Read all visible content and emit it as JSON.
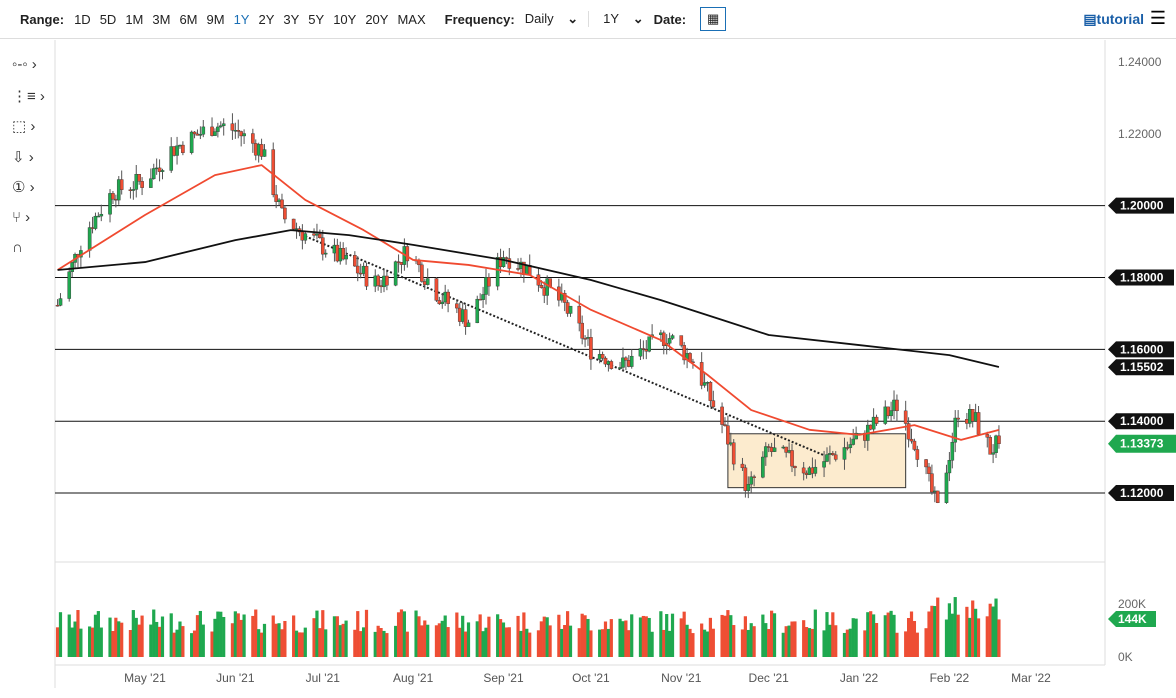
{
  "toolbar": {
    "range_label": "Range:",
    "ranges": [
      "1D",
      "5D",
      "1M",
      "3M",
      "6M",
      "9M",
      "1Y",
      "2Y",
      "3Y",
      "5Y",
      "10Y",
      "20Y",
      "MAX"
    ],
    "active_range": "1Y",
    "frequency_label": "Frequency:",
    "frequency": "Daily",
    "period": "1Y",
    "date_label": "Date:",
    "tutorial": "tutorial"
  },
  "tools": [
    "crosshair-icon",
    "list-icon",
    "rectangle-icon",
    "arrow-down-icon",
    "number-icon",
    "fork-icon",
    "magnet-icon"
  ],
  "chart_data": {
    "type": "candlestick",
    "ylim": [
      1.105,
      1.245
    ],
    "yticks": [
      "1.24000",
      "1.22000",
      "1.20000",
      "1.18000",
      "1.16000",
      "1.14000",
      "1.12000"
    ],
    "xticks": [
      [
        "May '21",
        "2021-05-01"
      ],
      [
        "Jun '21",
        "2021-06-01"
      ],
      [
        "Jul '21",
        "2021-07-01"
      ],
      [
        "Aug '21",
        "2021-08-01"
      ],
      [
        "Sep '21",
        "2021-09-01"
      ],
      [
        "Oct '21",
        "2021-10-01"
      ],
      [
        "Nov '21",
        "2021-11-01"
      ],
      [
        "Dec '21",
        "2021-12-01"
      ],
      [
        "Jan '22",
        "2022-01-01"
      ],
      [
        "Feb '22",
        "2022-02-01"
      ],
      [
        "Mar '22",
        "2022-03-01"
      ]
    ],
    "close_keypoints": [
      [
        "2021-04-01",
        1.1723
      ],
      [
        "2021-04-10",
        1.192
      ],
      [
        "2021-04-20",
        1.204
      ],
      [
        "2021-05-01",
        1.207
      ],
      [
        "2021-05-10",
        1.2155
      ],
      [
        "2021-05-25",
        1.2225
      ],
      [
        "2021-06-01",
        1.221
      ],
      [
        "2021-06-10",
        1.2155
      ],
      [
        "2021-06-17",
        1.197
      ],
      [
        "2021-06-25",
        1.192
      ],
      [
        "2021-07-05",
        1.1865
      ],
      [
        "2021-07-20",
        1.178
      ],
      [
        "2021-07-30",
        1.1875
      ],
      [
        "2021-08-10",
        1.175
      ],
      [
        "2021-08-20",
        1.168
      ],
      [
        "2021-09-01",
        1.1865
      ],
      [
        "2021-09-10",
        1.182
      ],
      [
        "2021-09-22",
        1.172
      ],
      [
        "2021-10-01",
        1.16
      ],
      [
        "2021-10-12",
        1.1556
      ],
      [
        "2021-10-27",
        1.164
      ],
      [
        "2021-11-05",
        1.157
      ],
      [
        "2021-11-15",
        1.139
      ],
      [
        "2021-11-24",
        1.1208
      ],
      [
        "2021-12-01",
        1.132
      ],
      [
        "2021-12-15",
        1.1263
      ],
      [
        "2021-12-31",
        1.1347
      ],
      [
        "2022-01-14",
        1.1445
      ],
      [
        "2022-01-20",
        1.1347
      ],
      [
        "2022-01-28",
        1.1152
      ],
      [
        "2022-02-04",
        1.143
      ],
      [
        "2022-02-10",
        1.14
      ],
      [
        "2022-02-15",
        1.132
      ],
      [
        "2022-02-18",
        1.13373
      ]
    ],
    "ma_red": [
      [
        "2021-04-01",
        1.1821
      ],
      [
        "2021-05-01",
        1.1974
      ],
      [
        "2021-05-25",
        1.2085
      ],
      [
        "2021-06-10",
        1.2113
      ],
      [
        "2021-06-25",
        1.2016
      ],
      [
        "2021-07-15",
        1.1932
      ],
      [
        "2021-08-01",
        1.1849
      ],
      [
        "2021-08-20",
        1.1835
      ],
      [
        "2021-09-10",
        1.1807
      ],
      [
        "2021-10-01",
        1.171
      ],
      [
        "2021-10-25",
        1.1626
      ],
      [
        "2021-11-10",
        1.1529
      ],
      [
        "2021-11-25",
        1.1431
      ],
      [
        "2021-12-15",
        1.1376
      ],
      [
        "2022-01-01",
        1.1362
      ],
      [
        "2022-01-20",
        1.1389
      ],
      [
        "2022-02-05",
        1.1348
      ],
      [
        "2022-02-18",
        1.1376
      ]
    ],
    "ma_black": [
      [
        "2021-04-01",
        1.1821
      ],
      [
        "2021-05-01",
        1.1843
      ],
      [
        "2021-06-01",
        1.1904
      ],
      [
        "2021-06-20",
        1.1932
      ],
      [
        "2021-07-10",
        1.1918
      ],
      [
        "2021-08-01",
        1.1891
      ],
      [
        "2021-09-01",
        1.1849
      ],
      [
        "2021-10-01",
        1.1793
      ],
      [
        "2021-10-25",
        1.1737
      ],
      [
        "2021-11-15",
        1.1682
      ],
      [
        "2021-12-01",
        1.164
      ],
      [
        "2022-01-01",
        1.1612
      ],
      [
        "2022-02-01",
        1.1584
      ],
      [
        "2022-02-18",
        1.1551
      ]
    ],
    "hlines": [
      1.2,
      1.18,
      1.16,
      1.14,
      1.12
    ],
    "trendline": [
      [
        "2021-06-25",
        1.1915
      ],
      [
        "2021-12-20",
        1.1305
      ]
    ],
    "box": {
      "from": "2021-11-17",
      "to": "2022-01-17",
      "high": 1.1365,
      "low": 1.1215
    },
    "last_price": "1.13373",
    "ma_black_label": "1.15502",
    "volume": {
      "ticks": [
        "200K",
        "0K"
      ],
      "max": 250000,
      "last": "144K"
    },
    "colors": {
      "up": "#1fa84f",
      "down": "#ee4e34",
      "ma_red": "#f04a30",
      "ma_black": "#111111"
    }
  }
}
